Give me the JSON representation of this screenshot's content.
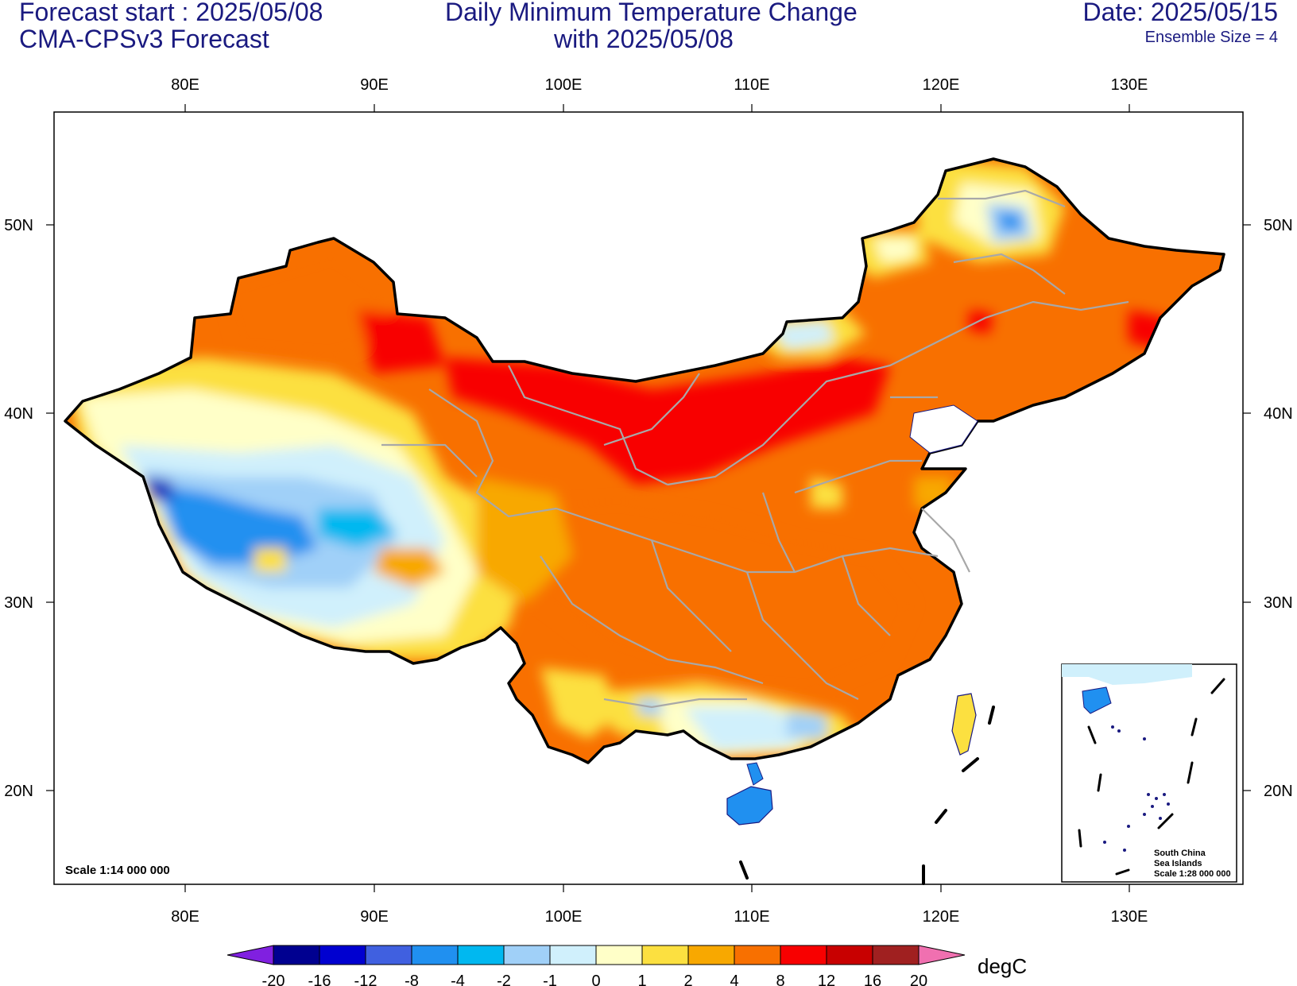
{
  "header": {
    "forecast_start": "Forecast start : 2025/05/08",
    "model": "CMA-CPSv3 Forecast",
    "title_line1": "Daily Minimum Temperature Change",
    "title_line2": "with 2025/05/08",
    "date": "Date: 2025/05/15",
    "ensemble": "Ensemble Size = 4"
  },
  "map": {
    "lon_labels": [
      "80E",
      "90E",
      "100E",
      "110E",
      "120E",
      "130E"
    ],
    "lat_labels": [
      "50N",
      "40N",
      "30N",
      "20N"
    ],
    "scale_text": "Scale 1:14 000 000",
    "inset": {
      "line1": "South China",
      "line2": "Sea Islands",
      "line3": "Scale 1:28 000 000"
    }
  },
  "colorbar": {
    "unit": "degC",
    "ticks": [
      "-20",
      "-16",
      "-12",
      "-8",
      "-4",
      "-2",
      "-1",
      "0",
      "1",
      "2",
      "4",
      "8",
      "12",
      "16",
      "20"
    ],
    "colors": [
      "#000090",
      "#0000d0",
      "#4060e0",
      "#2090f0",
      "#00b8f0",
      "#a0d0f8",
      "#d0f0fc",
      "#ffffc8",
      "#fce040",
      "#f8a800",
      "#f87000",
      "#f80000",
      "#c80000",
      "#a02020"
    ],
    "under_color": "#8020e0",
    "over_color": "#f070b0"
  },
  "legend_colors": {
    "very_cold": "#2060e0",
    "cold": "#00b8f0",
    "light_cold": "#a0d0f8",
    "neutral": "#ffffc8",
    "warm": "#f8a800",
    "hot": "#f87000",
    "very_hot": "#f80000"
  }
}
